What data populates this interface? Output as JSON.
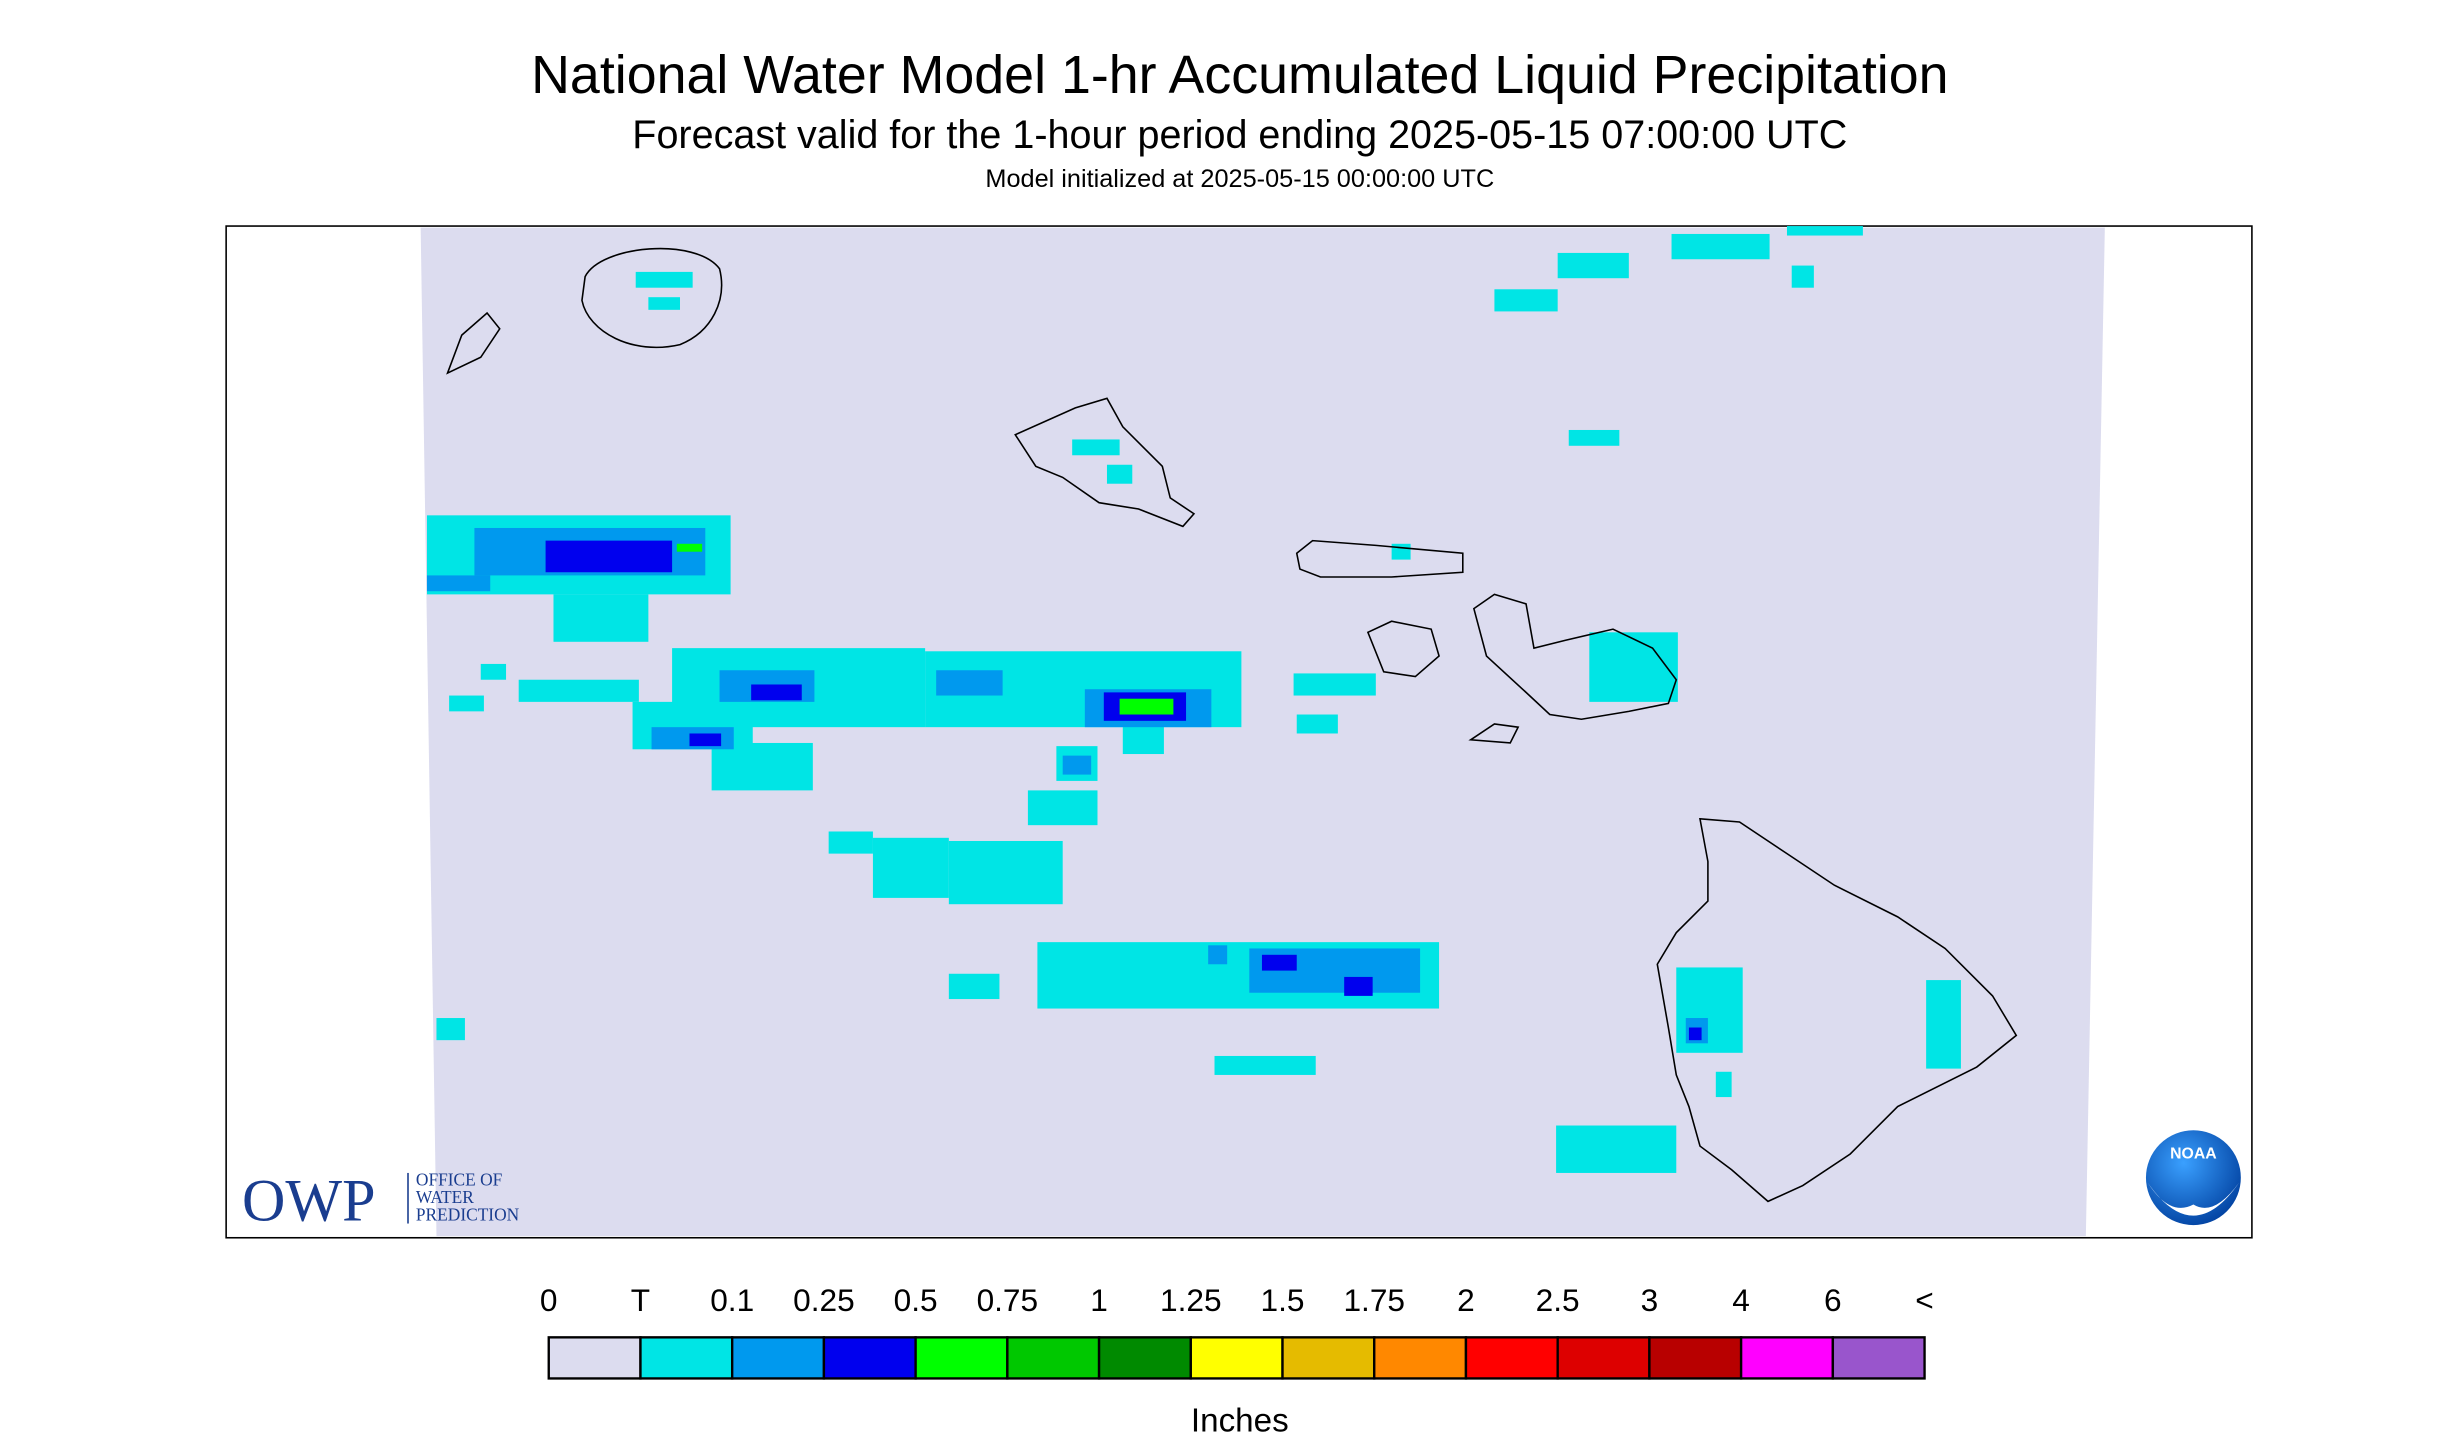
{
  "header": {
    "title": "National Water Model 1-hr Accumulated Liquid Precipitation",
    "subtitle": "Forecast valid for the 1-hour period ending 2025-05-15 07:00:00 UTC",
    "init": "Model initialized at 2025-05-15 00:00:00 UTC"
  },
  "legend": {
    "labels": [
      "0",
      "T",
      "0.1",
      "0.25",
      "0.5",
      "0.75",
      "1",
      "1.25",
      "1.5",
      "1.75",
      "2",
      "2.5",
      "3",
      "4",
      "6",
      "<"
    ],
    "colors": [
      "#dcdcef",
      "#00e5e5",
      "#0099ee",
      "#0000ee",
      "#00ff00",
      "#00c800",
      "#008a00",
      "#ffff00",
      "#e5bb00",
      "#ff8800",
      "#ff0000",
      "#dd0000",
      "#b80000",
      "#ff00ff",
      "#9955cc"
    ],
    "units": "Inches"
  },
  "logos": {
    "owp": "OWP",
    "owp_name": [
      "OFFICE OF",
      "WATER",
      "PREDICTION"
    ],
    "noaa": "NOAA"
  }
}
